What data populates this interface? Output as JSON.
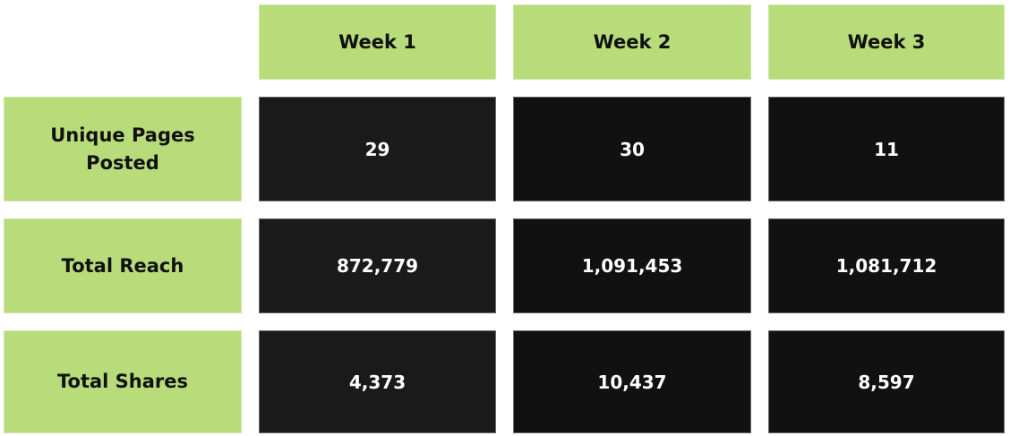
{
  "table": {
    "columns": [
      "Week 1",
      "Week 2",
      "Week 3"
    ],
    "rows": [
      {
        "label": "Unique Pages Posted",
        "values": [
          "29",
          "30",
          "11"
        ]
      },
      {
        "label": "Total Reach",
        "values": [
          "872,779",
          "1,091,453",
          "1,081,712"
        ]
      },
      {
        "label": "Total Shares",
        "values": [
          "4,373",
          "10,437",
          "8,597"
        ]
      }
    ]
  },
  "colors": {
    "header_bg": "#b8dc7a",
    "value_bg": "#111111",
    "value_text": "#ffffff"
  }
}
